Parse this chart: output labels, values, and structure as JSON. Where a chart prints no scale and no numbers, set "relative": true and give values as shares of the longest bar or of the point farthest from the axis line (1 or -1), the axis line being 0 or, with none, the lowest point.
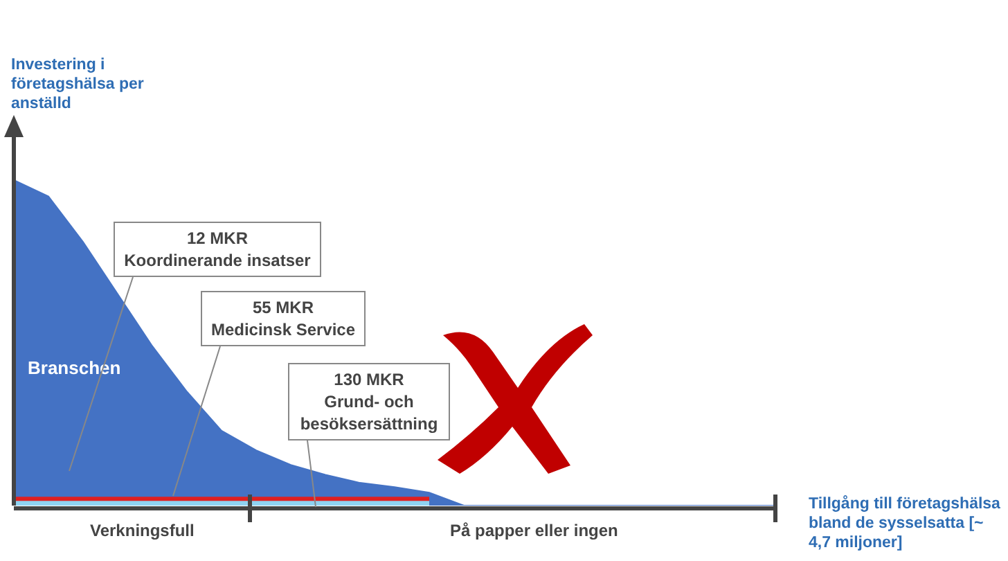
{
  "chart_data": {
    "type": "area",
    "relative": true,
    "ylabel": "Investering i företagshälsa per anställd",
    "xlabel": "Tillgång till företagshälsa bland de sysselsatta [~ 4,7 miljoner]",
    "categories": [
      null,
      null,
      null,
      null,
      null,
      null,
      null,
      null,
      null,
      null,
      null,
      null,
      null,
      null,
      null,
      null,
      null,
      null,
      null,
      null,
      null,
      null,
      null
    ],
    "series": [
      {
        "name": "Branschen",
        "color": "#4472c4",
        "values": [
          1.0,
          0.95,
          0.81,
          0.65,
          0.49,
          0.35,
          0.23,
          0.17,
          0.125,
          0.095,
          0.07,
          0.057,
          0.04,
          0,
          0,
          0,
          0,
          0,
          0,
          0,
          0,
          0,
          0
        ]
      },
      {
        "type": "area",
        "color": "#8fd3f2",
        "values": [
          0.015,
          0.015,
          0.015,
          0.015,
          0.015,
          0.015,
          0.015,
          0.015,
          0.015,
          0.015,
          0.015,
          0.015,
          0.015,
          null,
          null,
          null,
          null,
          null,
          null,
          null,
          null,
          null,
          null
        ]
      },
      {
        "type": "line",
        "color": "#e02020",
        "values": [
          0.021,
          0.021,
          0.021,
          0.021,
          0.021,
          0.021,
          0.021,
          0.021,
          0.021,
          0.021,
          0.021,
          0.021,
          0.021,
          null,
          null,
          null,
          null,
          null,
          null,
          null,
          null,
          null,
          null
        ]
      }
    ],
    "annotations": [
      "12 MKR\nKoordinerande insatser",
      "55 MKR\nMedicinsk Service",
      "130 MKR\nGrund- och\nbesöksersättning",
      "Verkningsfull",
      "På papper eller ingen"
    ]
  }
}
